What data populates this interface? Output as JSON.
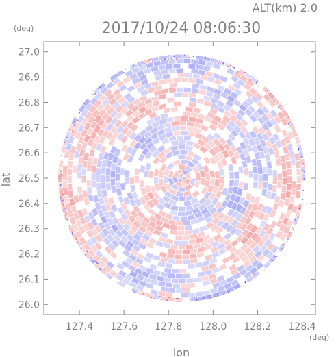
{
  "header": {
    "altitude_label": "ALT(km) 2.0",
    "timestamp": "2017/10/24 08:06:30",
    "y_unit": "(deg)",
    "x_unit": "(deg)"
  },
  "chart_data": {
    "type": "heatmap",
    "title": "2017/10/24 08:06:30",
    "subtitle": "ALT(km) 2.0",
    "xlabel": "lon",
    "ylabel": "lat",
    "x_unit": "(deg)",
    "y_unit": "(deg)",
    "xlim": [
      127.24,
      128.46
    ],
    "ylim": [
      25.96,
      27.04
    ],
    "xticks": [
      127.4,
      127.6,
      127.8,
      128.0,
      128.2,
      128.4
    ],
    "xtick_labels": [
      "127.4",
      "127.6",
      "127.8",
      "128.0",
      "128.2",
      "128.4"
    ],
    "yticks": [
      26.0,
      26.1,
      26.2,
      26.3,
      26.4,
      26.5,
      26.6,
      26.7,
      26.8,
      26.9,
      27.0
    ],
    "ytick_labels": [
      "26.0",
      "26.1",
      "26.2",
      "26.3",
      "26.4",
      "26.5",
      "26.6",
      "26.7",
      "26.8",
      "26.9",
      "27.0"
    ],
    "radar_center": {
      "lon": 127.86,
      "lat": 26.5
    },
    "radar_radius_deg": 0.555,
    "colors": {
      "positive": "#f4a7a7",
      "negative": "#a9aaf5",
      "neutral": "#ffffff",
      "axis": "#888888"
    },
    "grid": false
  }
}
